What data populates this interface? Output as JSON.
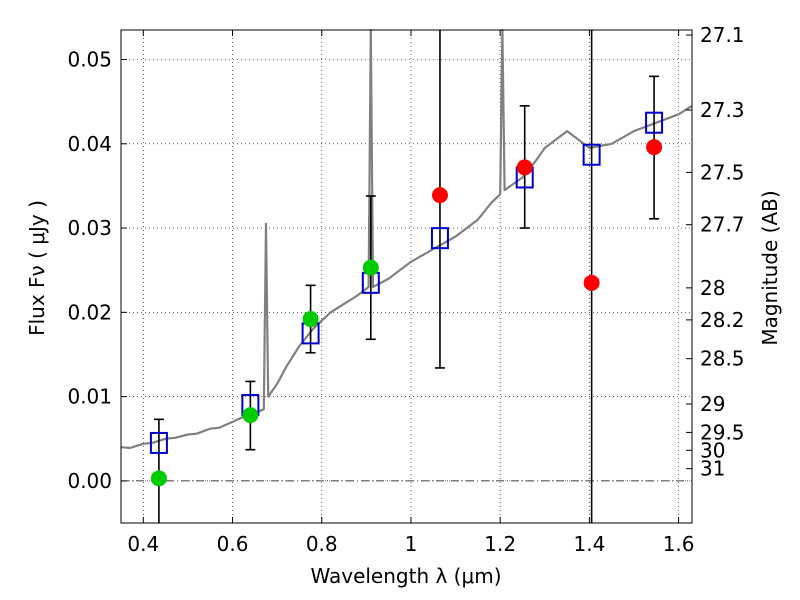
{
  "chart_data": {
    "type": "scatter",
    "xlabel": "Wavelength  λ (μm)",
    "ylabel": "Flux  Fν  ( μJy )",
    "y2label": "Magnitude (AB)",
    "xlim": [
      0.35,
      1.63
    ],
    "ylim": [
      -0.005,
      0.0535
    ],
    "grid": true,
    "x_ticks": [
      {
        "value": 0.4,
        "label": "0.4"
      },
      {
        "value": 0.6,
        "label": "0.6"
      },
      {
        "value": 0.8,
        "label": "0.8"
      },
      {
        "value": 1.0,
        "label": "1"
      },
      {
        "value": 1.2,
        "label": "1.2"
      },
      {
        "value": 1.4,
        "label": "1.4"
      },
      {
        "value": 1.6,
        "label": "1.6"
      }
    ],
    "y_ticks": [
      {
        "value": 0.0,
        "label": "0.00"
      },
      {
        "value": 0.01,
        "label": "0.01"
      },
      {
        "value": 0.02,
        "label": "0.02"
      },
      {
        "value": 0.03,
        "label": "0.03"
      },
      {
        "value": 0.04,
        "label": "0.04"
      },
      {
        "value": 0.05,
        "label": "0.05"
      }
    ],
    "y2_ticks": [
      {
        "label": "27.1",
        "flux": 0.0529
      },
      {
        "label": "27.3",
        "flux": 0.044
      },
      {
        "label": "27.5",
        "flux": 0.0366
      },
      {
        "label": "27.7",
        "flux": 0.0304
      },
      {
        "label": "28",
        "flux": 0.0229
      },
      {
        "label": "28.2",
        "flux": 0.0191
      },
      {
        "label": "28.5",
        "flux": 0.0145
      },
      {
        "label": "29",
        "flux": 0.00912
      },
      {
        "label": "29.5",
        "flux": 0.00575
      },
      {
        "label": "30",
        "flux": 0.00363
      },
      {
        "label": "31",
        "flux": 0.00145
      }
    ],
    "template_spectrum": {
      "color": "#808080",
      "points": [
        [
          0.35,
          0.004
        ],
        [
          0.37,
          0.0039
        ],
        [
          0.4,
          0.0044
        ],
        [
          0.42,
          0.0045
        ],
        [
          0.45,
          0.005
        ],
        [
          0.47,
          0.0051
        ],
        [
          0.5,
          0.0055
        ],
        [
          0.52,
          0.0056
        ],
        [
          0.55,
          0.0062
        ],
        [
          0.57,
          0.0063
        ],
        [
          0.6,
          0.007
        ],
        [
          0.62,
          0.0075
        ],
        [
          0.65,
          0.008
        ],
        [
          0.67,
          0.0085
        ],
        [
          0.675,
          0.0305
        ],
        [
          0.68,
          0.01
        ],
        [
          0.7,
          0.0115
        ],
        [
          0.72,
          0.0135
        ],
        [
          0.75,
          0.016
        ],
        [
          0.78,
          0.018
        ],
        [
          0.8,
          0.019
        ],
        [
          0.82,
          0.02
        ],
        [
          0.85,
          0.021
        ],
        [
          0.88,
          0.022
        ],
        [
          0.905,
          0.023
        ],
        [
          0.91,
          0.0535
        ],
        [
          0.915,
          0.023
        ],
        [
          0.95,
          0.024
        ],
        [
          1.0,
          0.026
        ],
        [
          1.05,
          0.0275
        ],
        [
          1.1,
          0.029
        ],
        [
          1.15,
          0.031
        ],
        [
          1.18,
          0.033
        ],
        [
          1.2,
          0.034
        ],
        [
          1.205,
          0.0535
        ],
        [
          1.21,
          0.0345
        ],
        [
          1.25,
          0.036
        ],
        [
          1.28,
          0.038
        ],
        [
          1.3,
          0.0395
        ],
        [
          1.35,
          0.0415
        ],
        [
          1.4,
          0.0395
        ],
        [
          1.45,
          0.04
        ],
        [
          1.5,
          0.0415
        ],
        [
          1.55,
          0.0425
        ],
        [
          1.6,
          0.0435
        ],
        [
          1.63,
          0.0445
        ]
      ]
    },
    "model_points": {
      "color": "#0000cc",
      "marker": "open-square",
      "x": [
        0.435,
        0.64,
        0.775,
        0.91,
        1.065,
        1.255,
        1.405,
        1.545
      ],
      "y": [
        0.0045,
        0.009,
        0.0175,
        0.0235,
        0.0288,
        0.036,
        0.0387,
        0.0425
      ]
    },
    "observed_optical": {
      "color": "#00cc00",
      "marker": "filled-circle",
      "x": [
        0.435,
        0.64,
        0.775,
        0.91
      ],
      "y": [
        0.0003,
        0.0078,
        0.0192,
        0.0253
      ],
      "err_low": [
        -0.006,
        0.0037,
        0.0152,
        0.0168
      ],
      "err_high": [
        0.0073,
        0.0118,
        0.0232,
        0.0338
      ]
    },
    "observed_ir": {
      "color": "#ff0000",
      "marker": "filled-circle",
      "x": [
        1.065,
        1.255,
        1.405,
        1.545
      ],
      "y": [
        0.0339,
        0.0372,
        0.0235,
        0.0396
      ],
      "err_low": [
        0.0134,
        0.03,
        -0.006,
        0.0311
      ],
      "err_high": [
        0.054,
        0.0445,
        0.054,
        0.048
      ]
    }
  }
}
